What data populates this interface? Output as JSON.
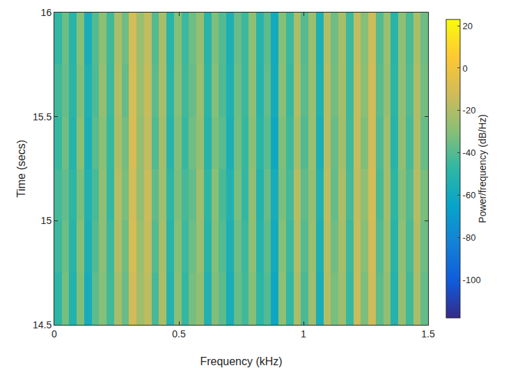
{
  "chart_data": {
    "type": "heatmap",
    "x_label": "Frequency (kHz)",
    "y_label": "Time (secs)",
    "colorbar_label": "Power/frequency (dB/Hz)",
    "xlim": [
      0,
      1.5
    ],
    "xticks": [
      0,
      0.5,
      1,
      1.5
    ],
    "ylim": [
      14.5,
      16
    ],
    "yticks": [
      14.5,
      15,
      15.5,
      16
    ],
    "zlim": [
      -118,
      23
    ],
    "zticks": [
      -100,
      -80,
      -60,
      -40,
      -20,
      0,
      20
    ],
    "grid": false,
    "x": [
      0.015,
      0.045,
      0.075,
      0.105,
      0.135,
      0.165,
      0.195,
      0.225,
      0.255,
      0.285,
      0.315,
      0.345,
      0.375,
      0.405,
      0.435,
      0.465,
      0.495,
      0.525,
      0.555,
      0.585,
      0.615,
      0.645,
      0.675,
      0.705,
      0.735,
      0.765,
      0.795,
      0.825,
      0.855,
      0.885,
      0.915,
      0.945,
      0.975,
      1.005,
      1.035,
      1.065,
      1.095,
      1.125,
      1.155,
      1.185,
      1.215,
      1.245,
      1.275,
      1.305,
      1.335,
      1.365,
      1.395,
      1.425,
      1.455,
      1.485
    ],
    "y": [
      14.625,
      14.875,
      15.125,
      15.375,
      15.625,
      15.875
    ],
    "z": [
      [
        -48,
        -33,
        -52,
        -31,
        -58,
        -38,
        -30,
        -44,
        -22,
        -36,
        -12,
        -24,
        -17,
        -43,
        -21,
        -52,
        -29,
        -47,
        -33,
        -27,
        -53,
        -31,
        -38,
        -57,
        -36,
        -44,
        -30,
        -48,
        -40,
        -62,
        -28,
        -47,
        -21,
        -42,
        -24,
        -57,
        -19,
        -33,
        -24,
        -46,
        -14,
        -32,
        -13,
        -38,
        -27,
        -52,
        -26,
        -44,
        -21,
        -37
      ],
      [
        -45,
        -35,
        -50,
        -30,
        -55,
        -40,
        -28,
        -45,
        -20,
        -35,
        -10,
        -25,
        -15,
        -40,
        -22,
        -50,
        -30,
        -45,
        -35,
        -25,
        -50,
        -30,
        -40,
        -55,
        -35,
        -45,
        -28,
        -50,
        -38,
        -60,
        -30,
        -45,
        -20,
        -40,
        -25,
        -55,
        -18,
        -35,
        -22,
        -45,
        -15,
        -30,
        -12,
        -40,
        -25,
        -50,
        -28,
        -42,
        -20,
        -35
      ],
      [
        -43,
        -37,
        -48,
        -32,
        -53,
        -42,
        -27,
        -47,
        -19,
        -33,
        -11,
        -27,
        -14,
        -38,
        -24,
        -48,
        -32,
        -43,
        -37,
        -24,
        -48,
        -29,
        -42,
        -53,
        -33,
        -47,
        -27,
        -52,
        -36,
        -58,
        -32,
        -43,
        -19,
        -38,
        -26,
        -53,
        -17,
        -37,
        -21,
        -43,
        -16,
        -28,
        -11,
        -42,
        -23,
        -48,
        -30,
        -40,
        -19,
        -33
      ],
      [
        -46,
        -34,
        -51,
        -29,
        -56,
        -39,
        -29,
        -46,
        -21,
        -34,
        -9,
        -26,
        -16,
        -41,
        -23,
        -51,
        -31,
        -46,
        -34,
        -26,
        -51,
        -32,
        -39,
        -56,
        -34,
        -46,
        -29,
        -49,
        -39,
        -61,
        -31,
        -44,
        -22,
        -41,
        -25,
        -56,
        -18,
        -36,
        -23,
        -44,
        -15,
        -31,
        -12,
        -41,
        -24,
        -51,
        -27,
        -43,
        -20,
        -36
      ],
      [
        -44,
        -36,
        -49,
        -31,
        -54,
        -41,
        -26,
        -45,
        -20,
        -37,
        -10,
        -25,
        -15,
        -39,
        -22,
        -49,
        -30,
        -44,
        -36,
        -25,
        -49,
        -30,
        -41,
        -54,
        -35,
        -45,
        -28,
        -51,
        -37,
        -59,
        -29,
        -46,
        -20,
        -39,
        -25,
        -54,
        -18,
        -34,
        -22,
        -45,
        -15,
        -29,
        -12,
        -39,
        -26,
        -49,
        -28,
        -41,
        -20,
        -34
      ],
      [
        -47,
        -35,
        -50,
        -30,
        -57,
        -40,
        -28,
        -44,
        -21,
        -35,
        -11,
        -25,
        -16,
        -40,
        -22,
        -50,
        -30,
        -45,
        -35,
        -26,
        -50,
        -31,
        -40,
        -55,
        -36,
        -45,
        -28,
        -50,
        -38,
        -60,
        -30,
        -45,
        -21,
        -40,
        -25,
        -55,
        -19,
        -35,
        -22,
        -45,
        -16,
        -30,
        -13,
        -40,
        -25,
        -50,
        -28,
        -42,
        -21,
        -35
      ]
    ]
  }
}
